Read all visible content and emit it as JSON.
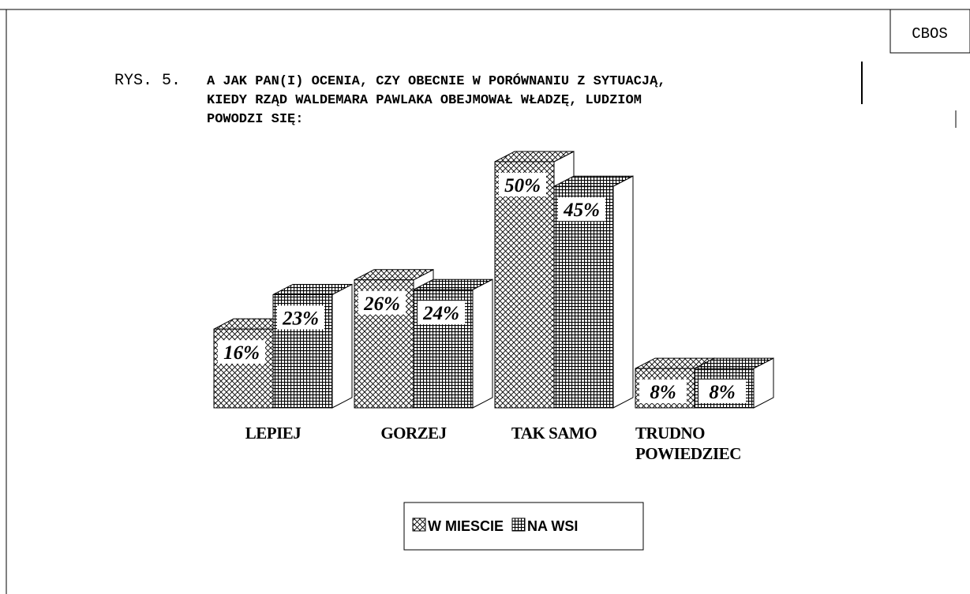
{
  "chart_data": {
    "type": "bar3d",
    "corner_label": "CBOS",
    "figure_label": "RYS. 5.",
    "title_lines": [
      "A JAK PAN(I) OCENIA, CZY OBECNIE W PORÓWNANIU Z SYTUACJĄ,",
      "KIEDY RZĄD WALDEMARA PAWLAKA OBEJMOWAŁ WŁADZĘ, LUDZIOM",
      "POWODZI SIĘ:"
    ],
    "categories": [
      "LEPIEJ",
      "GORZEJ",
      "TAK SAMO",
      "TRUDNO\nPOWIEDZIEC"
    ],
    "series": [
      {
        "name": "W MIESCIE",
        "color": "#000000",
        "pattern": "crosshatch",
        "values": [
          16,
          26,
          50,
          8
        ],
        "value_labels": [
          "16%",
          "26%",
          "50%",
          "8%"
        ]
      },
      {
        "name": "NA WSI",
        "color": "#000000",
        "pattern": "grid",
        "values": [
          23,
          24,
          45,
          8
        ],
        "value_labels": [
          "23%",
          "24%",
          "45%",
          "8%"
        ]
      }
    ]
  }
}
